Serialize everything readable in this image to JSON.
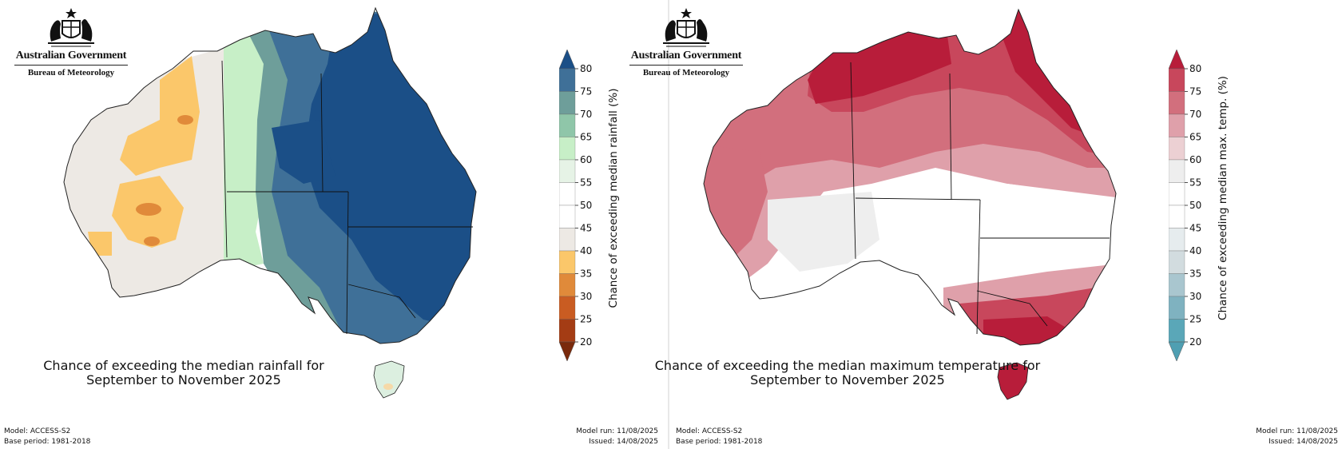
{
  "logo": {
    "line1": "Australian Government",
    "line2": "Bureau of Meteorology"
  },
  "colors": {
    "rain_high": "#1b4f87",
    "rain_low": "#f6b94e",
    "temp_high": "#b81d3a",
    "temp_low": "#5aa7b8"
  },
  "panels": [
    {
      "caption_line1": "Chance of exceeding the median rainfall for",
      "caption_line2": "September to November 2025",
      "colorbar_label": "Chance of exceeding median rainfall (%)",
      "colorbar_ticks": [
        "80",
        "75",
        "70",
        "65",
        "60",
        "55",
        "50",
        "45",
        "40",
        "35",
        "30",
        "25",
        "20"
      ],
      "colorbar_colors": [
        "#1b4f87",
        "#3f7098",
        "#6e9e9a",
        "#8fc6a9",
        "#c7efc7",
        "#e6f3e6",
        "#ffffff",
        "#ffffff",
        "#ede9e4",
        "#fbc76a",
        "#e08a3a",
        "#c95c22",
        "#a43c14",
        "#7a2a0c"
      ],
      "footer_left_1": "Model: ACCESS-S2",
      "footer_left_2": "Base period: 1981-2018",
      "footer_right_1": "Model run: 11/08/2025",
      "footer_right_2": "Issued: 14/08/2025"
    },
    {
      "caption_line1": "Chance of exceeding the median maximum temperature for",
      "caption_line2": "September to November 2025",
      "colorbar_label": "Chance of exceeding median max. temp. (%)",
      "colorbar_ticks": [
        "80",
        "75",
        "70",
        "65",
        "60",
        "55",
        "50",
        "45",
        "40",
        "35",
        "30",
        "25",
        "20"
      ],
      "colorbar_colors": [
        "#b81d3a",
        "#c8475c",
        "#d26f7d",
        "#dfa0aa",
        "#ecd0d3",
        "#eeeeee",
        "#ffffff",
        "#ffffff",
        "#e6ecee",
        "#d2dcdf",
        "#a9c6cf",
        "#7fb2c0",
        "#5aa7b8",
        "#4f9fb2"
      ],
      "footer_left_1": "Model: ACCESS-S2",
      "footer_left_2": "Base period: 1981-2018",
      "footer_right_1": "Model run: 11/08/2025",
      "footer_right_2": "Issued: 14/08/2025"
    }
  ]
}
